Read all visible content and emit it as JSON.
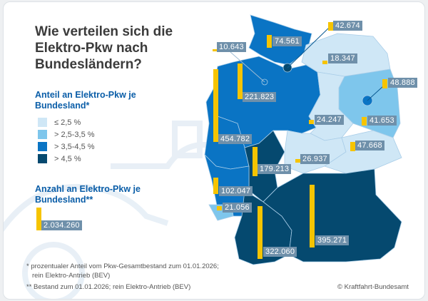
{
  "title": "Wie verteilen sich die Elektro-Pkw nach Bundesländern?",
  "legend_share": {
    "heading": "Anteil an Elektro-Pkw je Bundesland*",
    "items": [
      {
        "label": "≤ 2,5 %",
        "color": "#cfe7f6"
      },
      {
        "label": "> 2,5-3,5 %",
        "color": "#7ec6ec"
      },
      {
        "label": "> 3,5-4,5 %",
        "color": "#0a74c4"
      },
      {
        "label": "> 4,5 %",
        "color": "#05496f"
      }
    ]
  },
  "legend_count": {
    "heading": "Anzahl an Elektro-Pkw je Bundesland**",
    "sample_value": "2.034.260"
  },
  "bar_color": "#f6c400",
  "state_values": [
    "42.674",
    "74.561",
    "10.643",
    "18.347",
    "221.823",
    "454.782",
    "48.888",
    "24.247",
    "41.653",
    "47.668",
    "26.937",
    "179.213",
    "102.047",
    "21.056",
    "322.060",
    "395.271"
  ],
  "footnotes": {
    "note1_line1": "* prozentualer Anteil vom Pkw-Gesamtbestand zum 01.01.2026;",
    "note1_line2": "rein Elektro-Antrieb (BEV)",
    "note2": "** Bestand zum 01.01.2026; rein Elektro-Antrieb (BEV)"
  },
  "source": "© Kraftfahrt-Bundesamt"
}
